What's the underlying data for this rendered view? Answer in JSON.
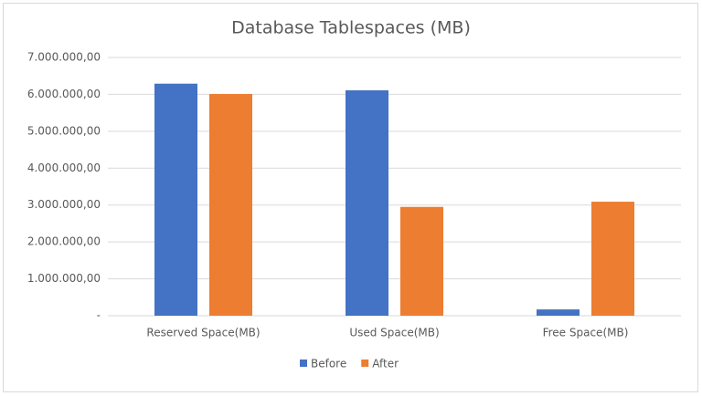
{
  "chart_data": {
    "type": "bar",
    "title": "Database Tablespaces (MB)",
    "categories": [
      "Reserved Space(MB)",
      "Used Space(MB)",
      "Free Space(MB)"
    ],
    "series": [
      {
        "name": "Before",
        "color": "#4472c4",
        "values": [
          6290000,
          6110000,
          170000
        ]
      },
      {
        "name": "After",
        "color": "#ed7d31",
        "values": [
          6010000,
          2950000,
          3090000
        ]
      }
    ],
    "ylim": [
      0,
      7000000
    ],
    "yticks": [
      {
        "value": 0,
        "label": "-"
      },
      {
        "value": 1000000,
        "label": "1.000.000,00"
      },
      {
        "value": 2000000,
        "label": "2.000.000,00"
      },
      {
        "value": 3000000,
        "label": "3.000.000,00"
      },
      {
        "value": 4000000,
        "label": "4.000.000,00"
      },
      {
        "value": 5000000,
        "label": "5.000.000,00"
      },
      {
        "value": 6000000,
        "label": "6.000.000,00"
      },
      {
        "value": 7000000,
        "label": "7.000.000,00"
      }
    ],
    "grid": true,
    "legend": "bottom"
  }
}
